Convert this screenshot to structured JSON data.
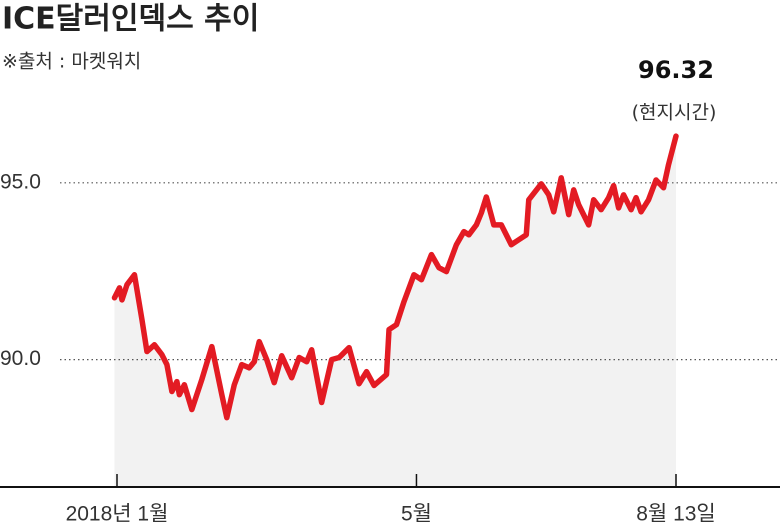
{
  "chart_data": {
    "type": "line",
    "title": "ICE달러인덱스 추이",
    "subtitle": "※출처 : 마켓워치",
    "x": [
      0,
      2,
      3,
      5,
      8,
      11,
      13,
      16,
      19,
      21,
      23,
      25,
      26,
      28,
      31,
      35,
      39,
      43,
      45,
      48,
      51,
      54,
      56,
      58,
      61,
      64,
      67,
      71,
      74,
      77,
      79,
      83,
      87,
      90,
      94,
      98,
      101,
      104,
      109,
      110,
      113,
      116,
      120,
      123,
      127,
      130,
      133,
      137,
      140,
      142,
      145,
      147,
      149,
      152,
      155,
      159,
      162,
      165,
      166,
      171,
      174,
      176,
      179,
      182,
      184,
      186,
      190,
      192,
      195,
      198,
      200,
      202,
      204,
      207,
      209,
      211,
      214,
      217,
      220,
      222,
      225
    ],
    "series": [
      {
        "name": "ICE달러인덱스",
        "color": "#e31b23",
        "values": [
          91.75,
          92.03,
          91.69,
          92.12,
          92.4,
          91.13,
          90.23,
          90.42,
          90.14,
          89.86,
          89.1,
          89.38,
          89.01,
          89.29,
          88.59,
          89.44,
          90.37,
          89.01,
          88.36,
          89.29,
          89.86,
          89.77,
          89.94,
          90.51,
          90.0,
          89.35,
          90.11,
          89.49,
          90.06,
          89.94,
          90.28,
          88.79,
          90.0,
          90.06,
          90.34,
          89.32,
          89.66,
          89.27,
          89.58,
          90.85,
          90.99,
          91.64,
          92.4,
          92.26,
          92.97,
          92.6,
          92.49,
          93.25,
          93.62,
          93.53,
          93.81,
          94.15,
          94.6,
          93.81,
          93.81,
          93.25,
          93.39,
          93.53,
          94.52,
          94.97,
          94.66,
          94.18,
          95.14,
          94.1,
          94.8,
          94.38,
          93.81,
          94.52,
          94.24,
          94.58,
          94.92,
          94.29,
          94.66,
          94.24,
          94.58,
          94.18,
          94.52,
          95.08,
          94.86,
          95.51,
          96.32
        ]
      }
    ],
    "annotation": "(현지시간)",
    "xlim": [
      1,
      225
    ],
    "xticks": [
      {
        "value": 1,
        "label": "2018년 1월"
      },
      {
        "value": 121,
        "label": "5월"
      },
      {
        "value": 225,
        "label": "8월 13일"
      }
    ],
    "ylim": [
      86.4,
      98.5
    ],
    "yticks": [
      {
        "value": 90,
        "label": "90.0"
      },
      {
        "value": 95,
        "label": "95.0"
      }
    ],
    "grid": true,
    "area_color": "#f2f2f2"
  }
}
